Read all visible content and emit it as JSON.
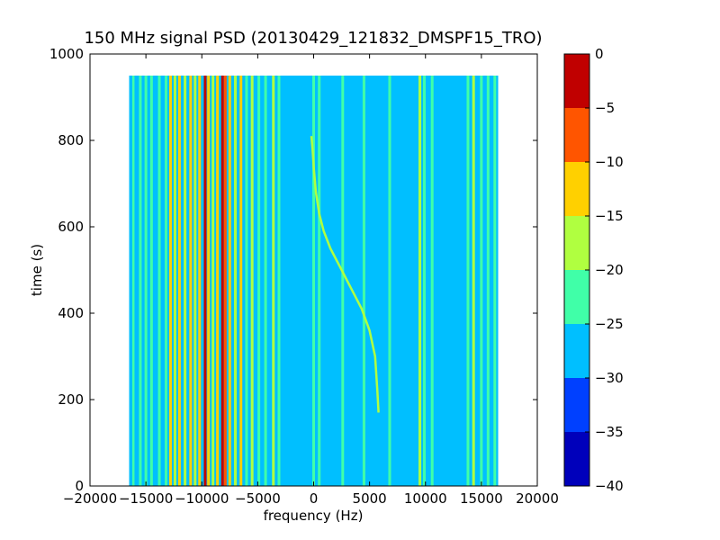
{
  "chart_data": {
    "type": "heatmap",
    "title": "150 MHz signal PSD (20130429_121832_DMSPF15_TRO)",
    "xlabel": "frequency (Hz)",
    "ylabel": "time (s)",
    "xlim": [
      -20000,
      20000
    ],
    "ylim": [
      0,
      1000
    ],
    "x_ticks": [
      -20000,
      -15000,
      -10000,
      -5000,
      0,
      5000,
      10000,
      15000,
      20000
    ],
    "y_ticks": [
      0,
      200,
      400,
      600,
      800,
      1000
    ],
    "data_extent": {
      "x": [
        -16500,
        16500
      ],
      "y": [
        0,
        950
      ]
    },
    "colorbar": {
      "range": [
        -40,
        0
      ],
      "ticks": [
        0,
        -5,
        -10,
        -15,
        -20,
        -25,
        -30,
        -35,
        -40
      ],
      "levels": [
        {
          "from": -40,
          "to": -35,
          "color": "#0000bb"
        },
        {
          "from": -35,
          "to": -30,
          "color": "#0040ff"
        },
        {
          "from": -30,
          "to": -25,
          "color": "#00bfff"
        },
        {
          "from": -25,
          "to": -20,
          "color": "#40ffa8"
        },
        {
          "from": -20,
          "to": -15,
          "color": "#b0ff40"
        },
        {
          "from": -15,
          "to": -10,
          "color": "#ffd000"
        },
        {
          "from": -10,
          "to": -5,
          "color": "#ff5500"
        },
        {
          "from": -5,
          "to": 0,
          "color": "#c00000"
        }
      ]
    },
    "background_level": -27.5,
    "spectral_lines": [
      {
        "x": -16100,
        "level": -22
      },
      {
        "x": -15900,
        "level": -27
      },
      {
        "x": -15500,
        "level": -22
      },
      {
        "x": -15000,
        "level": -22
      },
      {
        "x": -14500,
        "level": -22
      },
      {
        "x": -13800,
        "level": -22
      },
      {
        "x": -13200,
        "level": -22
      },
      {
        "x": -12800,
        "level": -12
      },
      {
        "x": -12400,
        "level": -18
      },
      {
        "x": -12000,
        "level": -12
      },
      {
        "x": -11500,
        "level": -17
      },
      {
        "x": -11000,
        "level": -12
      },
      {
        "x": -10600,
        "level": -17
      },
      {
        "x": -10200,
        "level": -12
      },
      {
        "x": -9700,
        "level": -2
      },
      {
        "x": -9400,
        "level": -12
      },
      {
        "x": -9000,
        "level": -17
      },
      {
        "x": -8600,
        "level": -12
      },
      {
        "x": -8150,
        "level": -2
      },
      {
        "x": -7900,
        "level": -8
      },
      {
        "x": -7500,
        "level": -12
      },
      {
        "x": -7000,
        "level": -17
      },
      {
        "x": -6500,
        "level": -12
      },
      {
        "x": -6000,
        "level": -22
      },
      {
        "x": -5500,
        "level": -17
      },
      {
        "x": -4900,
        "level": -22
      },
      {
        "x": -4300,
        "level": -22
      },
      {
        "x": -3600,
        "level": -17
      },
      {
        "x": -3100,
        "level": -22
      },
      {
        "x": 0,
        "level": -22
      },
      {
        "x": 500,
        "level": -22
      },
      {
        "x": 2600,
        "level": -22
      },
      {
        "x": 4500,
        "level": -22
      },
      {
        "x": 6800,
        "level": -22
      },
      {
        "x": 9500,
        "level": -17
      },
      {
        "x": 9900,
        "level": -22
      },
      {
        "x": 10600,
        "level": -22
      },
      {
        "x": 13800,
        "level": -22
      },
      {
        "x": 14300,
        "level": -17
      },
      {
        "x": 15000,
        "level": -22
      },
      {
        "x": 15600,
        "level": -22
      },
      {
        "x": 16200,
        "level": -22
      }
    ],
    "doppler_trace": {
      "level": -17,
      "points": [
        [
          5800,
          170
        ],
        [
          5700,
          220
        ],
        [
          5500,
          300
        ],
        [
          5000,
          360
        ],
        [
          4300,
          410
        ],
        [
          3300,
          460
        ],
        [
          2300,
          510
        ],
        [
          1500,
          550
        ],
        [
          900,
          590
        ],
        [
          500,
          630
        ],
        [
          200,
          680
        ],
        [
          0,
          740
        ],
        [
          -100,
          780
        ],
        [
          -200,
          810
        ]
      ]
    }
  }
}
